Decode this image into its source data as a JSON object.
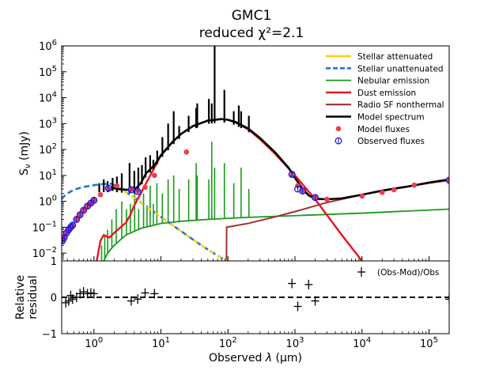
{
  "chart_data": {
    "type": "line",
    "title": "GMC1",
    "subtitle": "reduced χ²=2.1",
    "main_panel": {
      "ylabel": "S",
      "ylabel_sub": "ν",
      "ylabel_unit": " (mJy)",
      "yscale": "log",
      "ylim": [
        0.005,
        1000000
      ],
      "xscale": "log",
      "xlim": [
        0.33,
        200000
      ],
      "y_ticks": [
        {
          "value": 0.01,
          "base": "10",
          "exp": "−2"
        },
        {
          "value": 0.1,
          "base": "10",
          "exp": "−1"
        },
        {
          "value": 1,
          "base": "10",
          "exp": "0"
        },
        {
          "value": 10,
          "base": "10",
          "exp": "1"
        },
        {
          "value": 100,
          "base": "10",
          "exp": "2"
        },
        {
          "value": 1000,
          "base": "10",
          "exp": "3"
        },
        {
          "value": 10000,
          "base": "10",
          "exp": "4"
        },
        {
          "value": 100000,
          "base": "10",
          "exp": "5"
        },
        {
          "value": 1000000,
          "base": "10",
          "exp": "6"
        }
      ],
      "series": [
        {
          "name": "Stellar attenuated",
          "color": "#ffd000",
          "style": "solid",
          "x": [
            1.8,
            2.5,
            4,
            6,
            10,
            20,
            40,
            70,
            95
          ],
          "y": [
            4.5,
            3.0,
            1.4,
            0.65,
            0.25,
            0.07,
            0.02,
            0.008,
            0.005
          ]
        },
        {
          "name": "Stellar unattenuated",
          "color": "#1f77d4",
          "style": "dashed",
          "x": [
            0.33,
            0.35,
            0.4,
            0.5,
            0.7,
            1.0,
            1.3,
            1.8,
            2.5,
            4,
            6,
            10,
            20,
            40,
            70,
            95
          ],
          "y": [
            1.2,
            1.5,
            2.0,
            2.8,
            3.6,
            4.2,
            4.6,
            4.8,
            3.0,
            1.4,
            0.65,
            0.25,
            0.07,
            0.02,
            0.008,
            0.005
          ]
        },
        {
          "name": "Nebular emission",
          "color": "#1a9a1a",
          "style": "solid",
          "x": [
            1.4,
            1.6,
            2.0,
            3.0,
            5.0,
            10,
            20,
            50,
            100,
            200,
            1000,
            10000,
            200000
          ],
          "y": [
            0.005,
            0.01,
            0.02,
            0.05,
            0.09,
            0.14,
            0.17,
            0.2,
            0.22,
            0.24,
            0.28,
            0.35,
            0.5
          ]
        },
        {
          "name": "Dust emission",
          "color": "#e8141e",
          "style": "solid",
          "x": [
            1.1,
            1.25,
            1.4,
            1.7,
            2.0,
            2.5,
            3.0,
            3.5,
            4.0,
            5.0,
            6.0,
            8.0,
            10,
            15,
            20,
            30,
            50,
            80,
            100,
            130,
            200,
            300,
            500,
            1000,
            2000,
            5000,
            10000
          ],
          "y": [
            0.005,
            0.03,
            0.05,
            0.04,
            0.06,
            0.1,
            0.15,
            0.3,
            0.7,
            2,
            5,
            20,
            60,
            200,
            400,
            800,
            1300,
            1500,
            1400,
            1100,
            600,
            250,
            70,
            10,
            1.2,
            0.05,
            0.005
          ]
        },
        {
          "name": "Radio SF nonthermal",
          "color": "#a0302c",
          "style": "solid",
          "x": [
            95,
            95.5,
            200,
            500,
            1000,
            3000,
            10000,
            30000,
            100000,
            200000
          ],
          "y": [
            0.005,
            0.1,
            0.14,
            0.25,
            0.4,
            0.9,
            1.8,
            3.0,
            5.0,
            6.5
          ]
        },
        {
          "name": "Model spectrum",
          "color": "#000000",
          "style": "solid",
          "x": [
            1.8,
            2.2,
            3.0,
            4.0,
            5.0,
            6.0,
            8.0,
            10,
            15,
            20,
            30,
            50,
            80,
            100,
            130,
            200,
            300,
            500,
            800,
            1000,
            1300,
            1600,
            2000,
            3000,
            5000,
            10000,
            20000,
            50000,
            100000,
            200000
          ],
          "y": [
            3.5,
            3.0,
            2.8,
            2.7,
            5,
            12,
            25,
            60,
            200,
            400,
            800,
            1300,
            1500,
            1400,
            1150,
            650,
            280,
            80,
            20,
            8,
            3,
            1.7,
            1.25,
            1.2,
            1.3,
            1.8,
            2.6,
            3.8,
            5.3,
            7.0
          ]
        }
      ],
      "black_spikes": {
        "x": [
          1.2,
          1.4,
          1.6,
          1.9,
          2.2,
          2.6,
          3.4,
          4.0,
          4.6,
          5.2,
          5.9,
          6.9,
          7.7,
          8.8,
          10.5,
          12.8,
          15.5,
          18.7,
          25.9,
          33.5,
          34.8,
          51.8,
          57.3,
          63.2,
          88.4,
          122,
          145,
          157,
          205
        ],
        "y": [
          5,
          7,
          6,
          8,
          9,
          12,
          30,
          15,
          20,
          25,
          50,
          60,
          40,
          90,
          300,
          1000,
          3000,
          800,
          2000,
          4000,
          6000,
          9000,
          6000,
          1000000,
          20000,
          3000,
          5000,
          3000,
          2000
        ]
      },
      "green_spikes": {
        "x": [
          1.3,
          1.45,
          1.6,
          1.85,
          2.15,
          2.6,
          3.05,
          3.5,
          4.05,
          4.65,
          5.5,
          6.2,
          6.9,
          7.7,
          8.7,
          10.5,
          12.8,
          15.5,
          18.7,
          25.9,
          33.5,
          34.8,
          51.8,
          57.3,
          63.2,
          88.4,
          122,
          157,
          205
        ],
        "y": [
          0.02,
          0.05,
          0.08,
          0.2,
          0.5,
          1.0,
          0.5,
          0.8,
          3,
          0.5,
          2,
          0.7,
          4,
          0.8,
          5,
          2,
          7,
          10,
          3,
          7,
          30,
          10,
          7,
          200,
          20,
          30,
          5,
          20,
          3
        ]
      },
      "model_fluxes": {
        "name": "Model fluxes",
        "color": "#f03c50",
        "x": [
          0.34,
          0.36,
          0.39,
          0.42,
          0.45,
          0.48,
          0.55,
          0.62,
          0.7,
          0.8,
          0.9,
          1.0,
          1.25,
          1.65,
          2.2,
          3.6,
          4.5,
          5.8,
          8.0,
          24,
          900,
          1100,
          1300,
          2000,
          3000,
          10000,
          20000,
          30000,
          60000,
          200000
        ],
        "y": [
          0.03,
          0.04,
          0.06,
          0.08,
          0.1,
          0.12,
          0.2,
          0.3,
          0.45,
          0.65,
          0.85,
          1.1,
          1.8,
          3,
          4,
          3,
          2.6,
          3.5,
          10,
          80,
          10,
          4,
          2.6,
          1.4,
          1.2,
          1.6,
          2.2,
          2.8,
          4.2,
          6.5
        ]
      },
      "observed_fluxes": {
        "name": "Observed fluxes",
        "color": "#1a1ae6",
        "x": [
          0.34,
          0.36,
          0.39,
          0.42,
          0.45,
          0.48,
          0.55,
          0.62,
          0.7,
          0.8,
          0.9,
          1.0,
          1.65,
          3.6,
          4.5,
          900,
          1100,
          1300,
          2000,
          200000
        ],
        "y": [
          0.03,
          0.04,
          0.06,
          0.08,
          0.1,
          0.12,
          0.2,
          0.3,
          0.45,
          0.65,
          0.85,
          1.1,
          3.2,
          2.8,
          2.4,
          11,
          3.0,
          2.5,
          1.4,
          6.5
        ]
      }
    },
    "residual_panel": {
      "ylabel_line1": "Relative",
      "ylabel_line2": "residual",
      "ylim": [
        -1,
        1
      ],
      "y_ticks": [
        {
          "value": -1,
          "label": "−1"
        },
        {
          "value": 0,
          "label": "0"
        },
        {
          "value": 1,
          "label": "1"
        }
      ],
      "legend_label": "(Obs-Mod)/Obs",
      "points": {
        "x": [
          0.38,
          0.42,
          0.45,
          0.48,
          0.55,
          0.62,
          0.7,
          0.8,
          0.9,
          1.0,
          3.6,
          4.5,
          5.8,
          8.0,
          900,
          1100,
          1600,
          2000,
          200000
        ],
        "y": [
          -0.15,
          -0.1,
          0.05,
          -0.05,
          0.0,
          0.1,
          0.15,
          0.1,
          0.12,
          0.1,
          -0.1,
          -0.05,
          0.12,
          0.1,
          0.38,
          -0.25,
          0.35,
          -0.1,
          -0.05
        ]
      }
    },
    "xlabel_text": "Observed ",
    "xlabel_symbol": "λ",
    "xlabel_unit": " (μm)",
    "x_ticks": [
      {
        "value": 1,
        "base": "10",
        "exp": "0"
      },
      {
        "value": 10,
        "base": "10",
        "exp": "1"
      },
      {
        "value": 100,
        "base": "10",
        "exp": "2"
      },
      {
        "value": 1000,
        "base": "10",
        "exp": "3"
      },
      {
        "value": 10000,
        "base": "10",
        "exp": "4"
      },
      {
        "value": 100000,
        "base": "10",
        "exp": "5"
      }
    ],
    "legend_location": "upper-right"
  }
}
